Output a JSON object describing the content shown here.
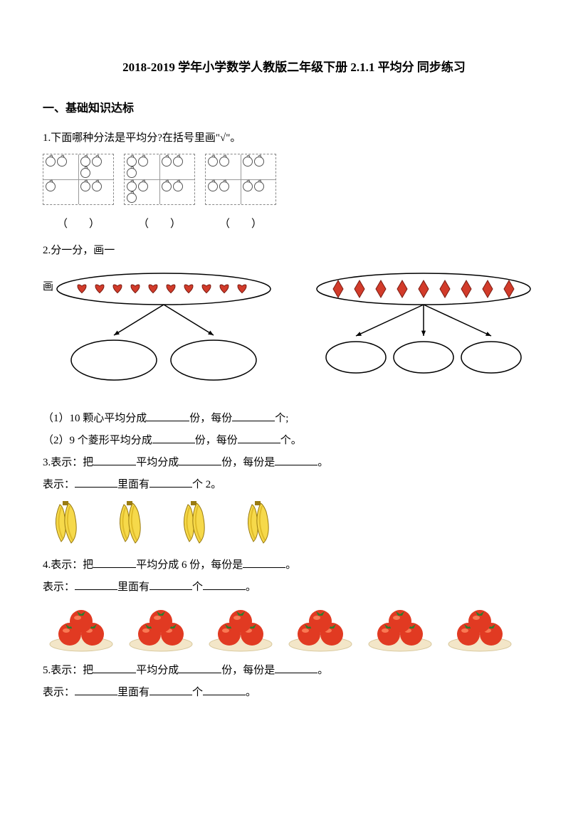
{
  "title": "2018-2019 学年小学数学人教版二年级下册  2.1.1 平均分  同步练习",
  "section1": {
    "heading": "一、基础知识达标"
  },
  "q1": {
    "text": "1.下面哪种分法是平均分?在括号里画\"√\"。",
    "paren": "（　　）",
    "boxes": [
      {
        "cells": [
          2,
          3,
          1,
          2
        ]
      },
      {
        "cells": [
          3,
          2,
          3,
          2
        ]
      },
      {
        "cells": [
          2,
          2,
          2,
          2
        ]
      }
    ]
  },
  "q2": {
    "lead": "2.分一分，画一",
    "tail": "画",
    "hearts": {
      "count": 10,
      "fill": "#d23b2a",
      "stroke": "#7a1c12",
      "outputs": 2
    },
    "diamonds": {
      "count": 9,
      "fill": "#d23b2a",
      "stroke": "#7a1c12",
      "outputs": 3
    },
    "sub1_a": "（1）10 颗心平均分成",
    "sub1_b": "份，每份",
    "sub1_c": "个;",
    "sub2_a": "（2）9 个菱形平均分成",
    "sub2_b": "份，每份",
    "sub2_c": "个。",
    "colors": {
      "oval_stroke": "#000000"
    }
  },
  "q3": {
    "line1_a": "3.表示：把",
    "line1_b": "平均分成",
    "line1_c": "份，每份是",
    "line1_d": "。",
    "line2_a": "表示：",
    "line2_b": "里面有",
    "line2_c": "个 2。",
    "bananas": {
      "count": 4,
      "per_bunch": 2,
      "peel": "#f6d94a",
      "shade": "#e0bc2a",
      "outline": "#9a7b12"
    }
  },
  "q4": {
    "line1_a": "4.表示：把",
    "line1_b": "平均分成 6 份，每份是",
    "line1_c": "。",
    "line2_a": "表示：",
    "line2_b": "里面有",
    "line2_c": "个",
    "line2_d": "。",
    "tomatoes": {
      "plates": 6,
      "per_plate": 3,
      "fruit": "#e13a22",
      "highlight": "#ff8a60",
      "leaf": "#2f7d2f",
      "plate": "#f3e6c8",
      "plate_edge": "#d7c79a"
    }
  },
  "q5": {
    "line1_a": "5.表示：把",
    "line1_b": "平均分成",
    "line1_c": "份，每份是",
    "line1_d": "。",
    "line2_a": "表示：",
    "line2_b": "里面有",
    "line2_c": "个",
    "line2_d": "。"
  }
}
